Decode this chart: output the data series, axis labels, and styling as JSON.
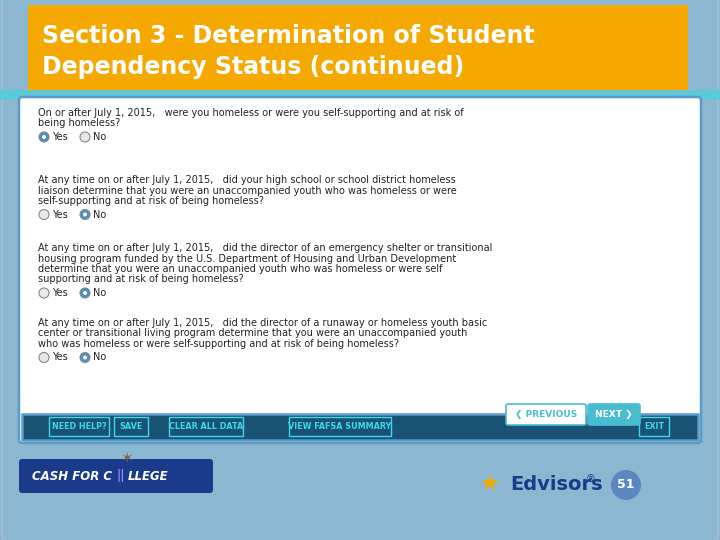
{
  "title_line1": "Section 3 - Determination of Student",
  "title_line2": "Dependency Status (continued)",
  "title_bg": "#F5A800",
  "title_text_color": "#FFFFFF",
  "slide_bg": "#8BB8D0",
  "content_bg": "#FFFFFF",
  "content_border": "#5B9BC8",
  "bottom_bar_bg": "#1A5276",
  "bottom_bar_text": "#00BFFF",
  "page_number": "51",
  "page_circle_color": "#5B87C0",
  "teal_bar": "#5DC8D8",
  "questions": [
    {
      "text": "On or after July 1, 2015,   were you homeless or were you self-supporting and at risk of\nbeing homeless?",
      "yes_selected": true,
      "no_selected": false
    },
    {
      "text": "At any time on or after July 1, 2015,   did your high school or school district homeless\nliaison determine that you were an unaccompanied youth who was homeless or were\nself-supporting and at risk of being homeless?",
      "yes_selected": false,
      "no_selected": true
    },
    {
      "text": "At any time on or after July 1, 2015,   did the director of an emergency shelter or transitional\nhousing program funded by the U.S. Department of Housing and Urban Development\ndetermine that you were an unaccompanied youth who was homeless or were self\nsupporting and at risk of being homeless?",
      "yes_selected": false,
      "no_selected": true
    },
    {
      "text": "At any time on or after July 1, 2015,   did the director of a runaway or homeless youth basic\ncenter or transitional living program determine that you were an unaccompanied youth\nwho was homeless or were self-supporting and at risk of being homeless?",
      "yes_selected": false,
      "no_selected": true
    }
  ],
  "bottom_buttons": [
    "NEED HELP?",
    "SAVE",
    "CLEAR ALL DATA",
    "VIEW FAFSA SUMMARY",
    "EXIT"
  ],
  "btn_x": [
    50,
    115,
    170,
    290,
    640
  ],
  "btn_w": [
    58,
    32,
    72,
    100,
    28
  ],
  "cash_for_college_bg": "#1A3A8A",
  "cash_for_college_text": "#FFFFFF",
  "edvisors_color": "#1A3A8A",
  "star_color": "#F5A800",
  "radio_selected_color": "#4A8FC0",
  "radio_unselected_color": "#CCCCCC",
  "text_color": "#222222",
  "q_font_size": 7.0,
  "title_font_size": 17,
  "nav_prev_color": "#4ABCD0",
  "nav_next_color": "#4ABCD0"
}
